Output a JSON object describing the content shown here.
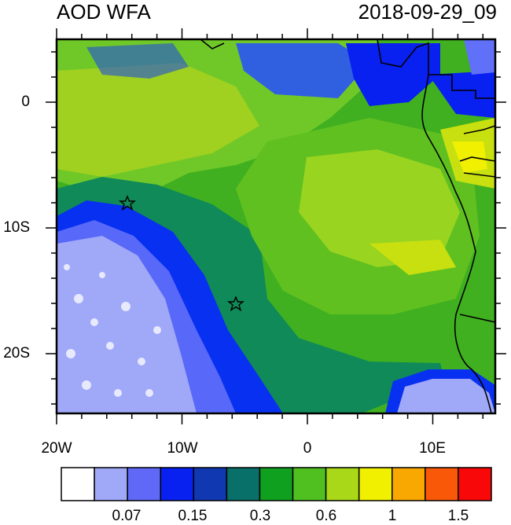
{
  "title": {
    "left": "AOD WFA",
    "right": "2018-09-29_09"
  },
  "axes": {
    "y_ticks": [
      "0",
      "10S",
      "20S"
    ],
    "x_ticks": [
      "20W",
      "10W",
      "0",
      "10E"
    ]
  },
  "colorbar": {
    "labels": [
      "0.07",
      "0.15",
      "0.3",
      "0.6",
      "1",
      "1.5"
    ],
    "colors": [
      "#ffffff",
      "#a0a8f8",
      "#6068f8",
      "#0820f0",
      "#1038b0",
      "#087068",
      "#10a020",
      "#50c020",
      "#a8d818",
      "#f0f000",
      "#f8a800",
      "#f85808",
      "#f80808"
    ]
  },
  "markers": {
    "count": 2,
    "icon": "star-icon"
  }
}
